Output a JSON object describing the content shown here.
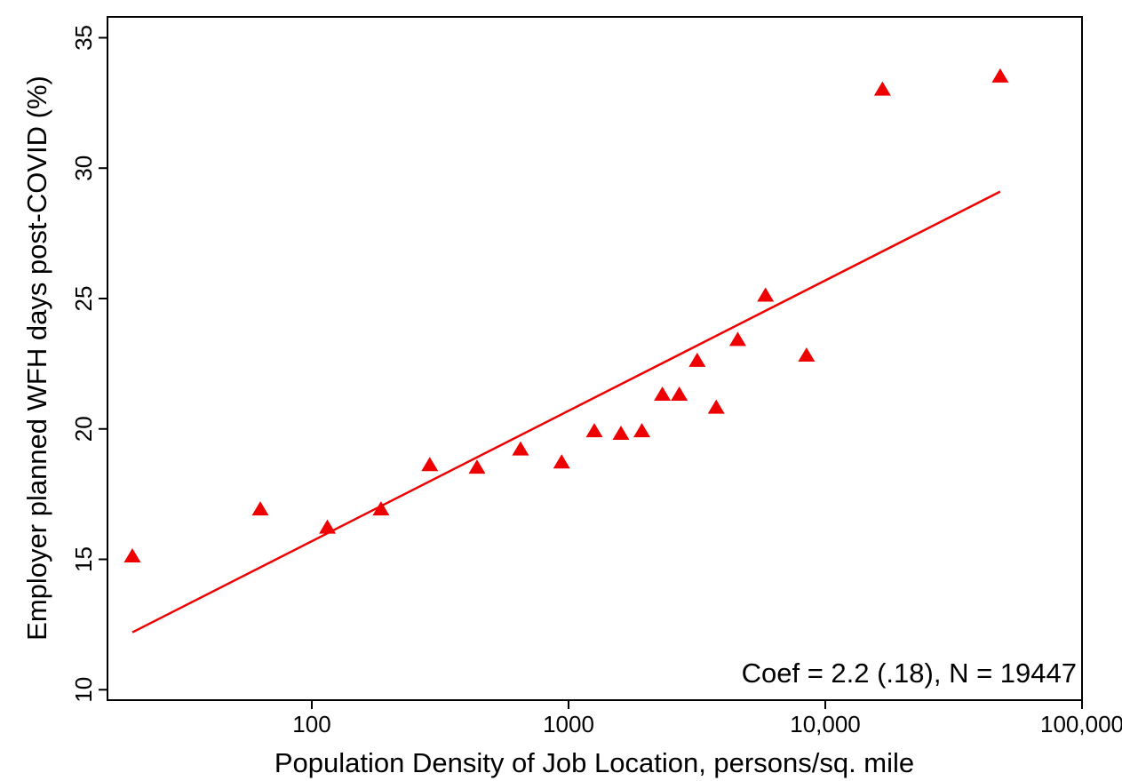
{
  "chart_data": {
    "type": "scatter",
    "xlabel": "Population Density of Job Location, persons/sq. mile",
    "ylabel": "Employer planned WFH days post-COVID (%)",
    "x_scale": "log",
    "xlim": [
      16,
      100000
    ],
    "ylim": [
      9.6,
      35.8
    ],
    "x_ticks": [
      100,
      1000,
      10000,
      100000
    ],
    "x_tick_labels": [
      "100",
      "1000",
      "10,000",
      "100,000"
    ],
    "y_ticks": [
      10,
      15,
      20,
      25,
      30,
      35
    ],
    "y_tick_labels": [
      "10",
      "15",
      "20",
      "25",
      "30",
      "35"
    ],
    "grid": false,
    "legend": "none",
    "marker": "triangle",
    "color": "#ee0000",
    "series": [
      {
        "points": [
          {
            "x": 20,
            "y": 15.1
          },
          {
            "x": 63,
            "y": 16.9
          },
          {
            "x": 115,
            "y": 16.2
          },
          {
            "x": 186,
            "y": 16.9
          },
          {
            "x": 288,
            "y": 18.6
          },
          {
            "x": 440,
            "y": 18.5
          },
          {
            "x": 650,
            "y": 19.2
          },
          {
            "x": 940,
            "y": 18.7
          },
          {
            "x": 1260,
            "y": 19.9
          },
          {
            "x": 1600,
            "y": 19.8
          },
          {
            "x": 1930,
            "y": 19.9
          },
          {
            "x": 2320,
            "y": 21.3
          },
          {
            "x": 2700,
            "y": 21.3
          },
          {
            "x": 3170,
            "y": 22.6
          },
          {
            "x": 3760,
            "y": 20.8
          },
          {
            "x": 4560,
            "y": 23.4
          },
          {
            "x": 5850,
            "y": 25.1
          },
          {
            "x": 8450,
            "y": 22.8
          },
          {
            "x": 16700,
            "y": 33.0
          },
          {
            "x": 48000,
            "y": 33.5
          }
        ]
      }
    ],
    "fit_line": {
      "x": [
        20,
        48000
      ],
      "y": [
        12.2,
        29.1
      ]
    },
    "annotation": "Coef = 2.2 (.18),  N = 19447"
  }
}
